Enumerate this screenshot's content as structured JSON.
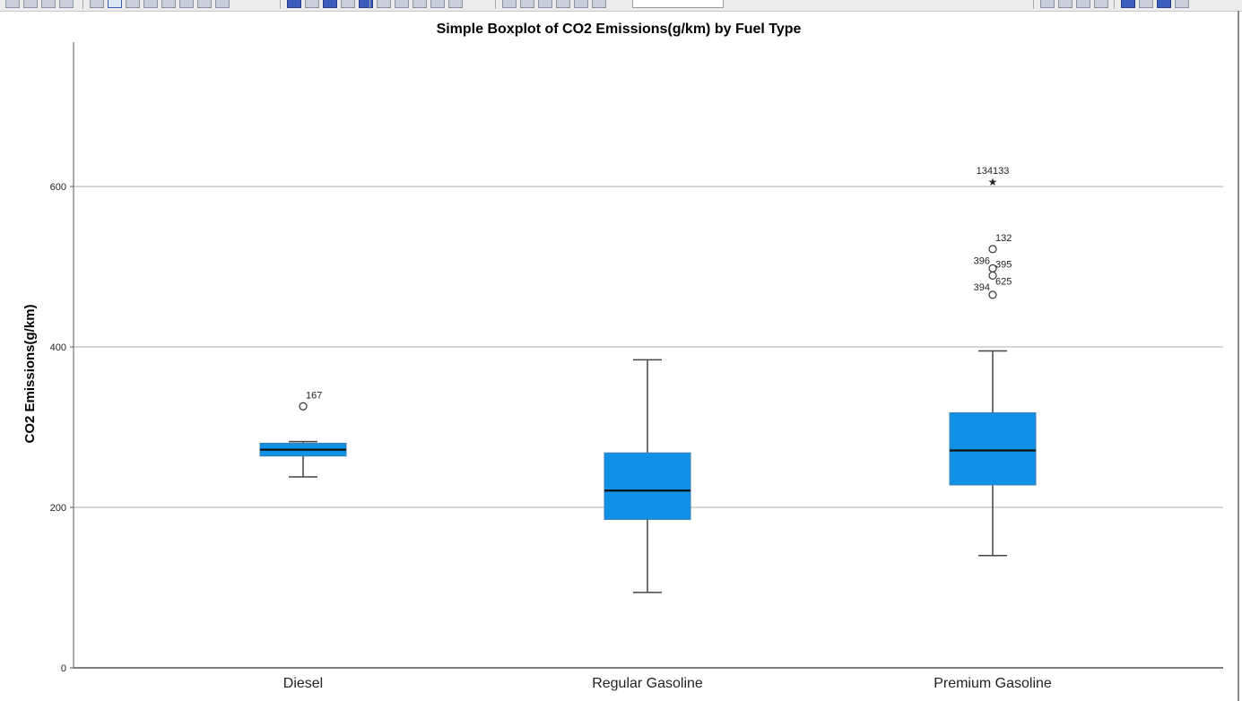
{
  "toolbar": {
    "groups": [
      {
        "name": "nav",
        "count": 4
      },
      {
        "name": "edit",
        "count": 8
      },
      {
        "name": "chart-elements",
        "count": 6
      },
      {
        "name": "insert",
        "count": 5
      },
      {
        "name": "format",
        "count": 6
      },
      {
        "name": "align",
        "count": 4
      },
      {
        "name": "layout",
        "count": 4
      }
    ]
  },
  "chart_data": {
    "type": "boxplot",
    "title": "Simple Boxplot of CO2 Emissions(g/km) by Fuel Type",
    "xlabel": "",
    "ylabel": "CO2 Emissions(g/km)",
    "ylim": [
      0,
      780
    ],
    "yticks": [
      0,
      200,
      400,
      600
    ],
    "grid": true,
    "box_color": "#1191e6",
    "categories": [
      "Diesel",
      "Regular Gasoline",
      "Premium Gasoline"
    ],
    "boxes": [
      {
        "category": "Diesel",
        "whisker_low": 238,
        "q1": 264,
        "median": 272,
        "q3": 280,
        "whisker_high": 282,
        "outliers": [
          {
            "label": "167",
            "value": 326,
            "kind": "circle"
          }
        ]
      },
      {
        "category": "Regular Gasoline",
        "whisker_low": 94,
        "q1": 185,
        "median": 221,
        "q3": 268,
        "whisker_high": 384,
        "outliers": []
      },
      {
        "category": "Premium Gasoline",
        "whisker_low": 140,
        "q1": 228,
        "median": 271,
        "q3": 318,
        "whisker_high": 395,
        "outliers": [
          {
            "label": "134133",
            "value": 607,
            "kind": "star"
          },
          {
            "label": "132",
            "value": 522,
            "kind": "circle"
          },
          {
            "label": "396",
            "value": 498,
            "kind": "circle"
          },
          {
            "label": "395",
            "value": 489,
            "kind": "circle"
          },
          {
            "label": "394",
            "value": 465,
            "kind": "circle"
          },
          {
            "label": "625",
            "value": 465,
            "kind": "circle-hidden"
          }
        ]
      }
    ]
  }
}
